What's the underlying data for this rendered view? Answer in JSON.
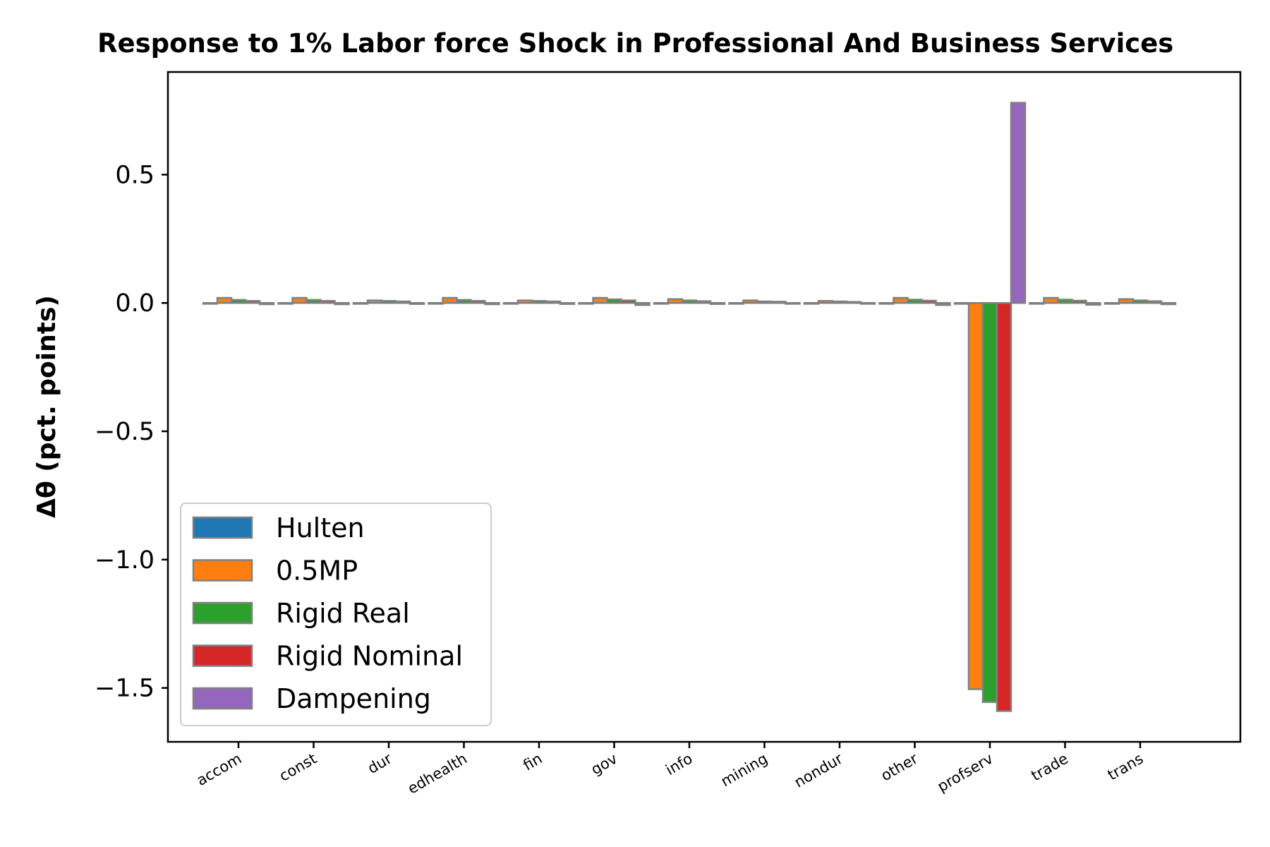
{
  "chart_data": {
    "type": "bar",
    "title": "Response to 1% Labor force Shock in Professional And Business Services",
    "xlabel": "",
    "ylabel": "Δθ  (pct. points)",
    "ylim": [
      -1.71,
      0.9
    ],
    "yticks": [
      0.5,
      0.0,
      -0.5,
      -1.0,
      -1.5
    ],
    "ytick_labels": [
      "0.5",
      "0.0",
      "−0.5",
      "−1.0",
      "−1.5"
    ],
    "legend_position": "lower-left",
    "grid": false,
    "categories": [
      "accom",
      "const",
      "dur",
      "edhealth",
      "fin",
      "gov",
      "info",
      "mining",
      "nondur",
      "other",
      "profserv",
      "trade",
      "trans"
    ],
    "series": [
      {
        "name": "Hulten",
        "color": "#1f77b4",
        "values": [
          0,
          0,
          0,
          0,
          0,
          0,
          0,
          0,
          0,
          0,
          0,
          0,
          0
        ]
      },
      {
        "name": "0.5MP",
        "color": "#ff7f0e",
        "values": [
          0.02,
          0.02,
          0.01,
          0.02,
          0.01,
          0.02,
          0.015,
          0.01,
          0.008,
          0.02,
          -1.505,
          0.02,
          0.015
        ]
      },
      {
        "name": "Rigid Real",
        "color": "#2ca02c",
        "values": [
          0.012,
          0.012,
          0.008,
          0.012,
          0.008,
          0.014,
          0.01,
          0.006,
          0.006,
          0.013,
          -1.555,
          0.013,
          0.01
        ]
      },
      {
        "name": "Rigid Nominal",
        "color": "#d62728",
        "values": [
          0.008,
          0.008,
          0.006,
          0.008,
          0.006,
          0.01,
          0.007,
          0.005,
          0.004,
          0.009,
          -1.59,
          0.009,
          0.007
        ]
      },
      {
        "name": "Dampening",
        "color": "#9467bd",
        "values": [
          -0.005,
          -0.005,
          -0.004,
          -0.005,
          -0.004,
          -0.008,
          -0.004,
          -0.002,
          -0.002,
          -0.008,
          0.78,
          -0.007,
          -0.005
        ]
      }
    ]
  }
}
